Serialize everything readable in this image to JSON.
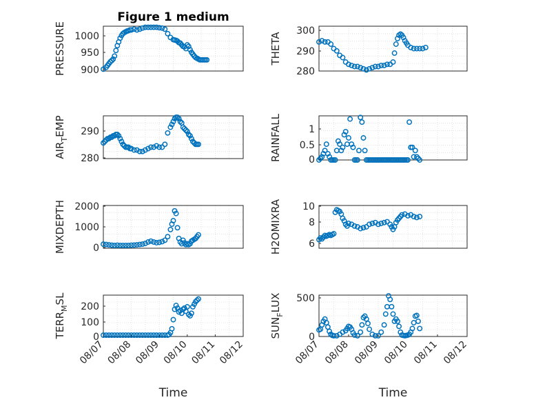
{
  "figure": {
    "title": "Figure 1 medium"
  },
  "chart_data": [
    {
      "type": "scatter",
      "title": "Figure 1 medium",
      "ylabel": "PRESSURE",
      "ylim": [
        900,
        1020
      ],
      "yticks": [
        "900",
        "950",
        "1000"
      ],
      "xlim": [
        0,
        5
      ],
      "grid": true,
      "series": [
        {
          "x": [
            0.0,
            0.1,
            0.15,
            0.2,
            0.25,
            0.3,
            0.35,
            0.4,
            0.45,
            0.5,
            0.55,
            0.6,
            0.65,
            0.7,
            0.75,
            0.8,
            0.85,
            0.9,
            0.95,
            1.0,
            1.1,
            1.2,
            1.3,
            1.4,
            1.5,
            1.6,
            1.7,
            1.8,
            1.9,
            2.0,
            2.1,
            2.2,
            2.3,
            2.4,
            2.5,
            2.55,
            2.6,
            2.65,
            2.7,
            2.75,
            2.8,
            2.85,
            2.9,
            2.95,
            3.0,
            3.05,
            3.1,
            3.15,
            3.2,
            3.25,
            3.3,
            3.35,
            3.4,
            3.45,
            3.5,
            3.55,
            3.6,
            3.65,
            3.7
          ],
          "y": [
            905,
            910,
            915,
            920,
            925,
            928,
            932,
            940,
            955,
            968,
            978,
            988,
            995,
            1000,
            1003,
            1005,
            1007,
            1008,
            1010,
            1010,
            1012,
            1010,
            1012,
            1015,
            1017,
            1017,
            1017,
            1017,
            1017,
            1016,
            1015,
            1012,
            1000,
            990,
            984,
            983,
            982,
            980,
            976,
            975,
            970,
            966,
            965,
            960,
            970,
            966,
            957,
            950,
            945,
            940,
            936,
            934,
            932,
            930,
            930,
            930,
            930,
            930,
            930
          ]
        }
      ]
    },
    {
      "type": "scatter",
      "ylabel": "THETA",
      "ylim": [
        280,
        300
      ],
      "yticks": [
        "280",
        "290",
        "300"
      ],
      "xlim": [
        0,
        5
      ],
      "grid": true,
      "series": [
        {
          "x": [
            0.0,
            0.1,
            0.2,
            0.3,
            0.4,
            0.5,
            0.6,
            0.7,
            0.8,
            0.9,
            1.0,
            1.1,
            1.2,
            1.3,
            1.4,
            1.5,
            1.6,
            1.7,
            1.8,
            1.9,
            2.0,
            2.1,
            2.2,
            2.3,
            2.4,
            2.5,
            2.55,
            2.6,
            2.65,
            2.7,
            2.75,
            2.8,
            2.85,
            2.9,
            2.95,
            3.0,
            3.1,
            3.2,
            3.3,
            3.4,
            3.5,
            3.6
          ],
          "y": [
            293,
            293.5,
            293,
            293,
            292,
            290,
            289,
            287,
            286,
            284,
            283,
            282.5,
            282,
            282,
            281.5,
            281,
            280.5,
            281,
            281.5,
            282,
            282,
            282.5,
            282.5,
            283,
            283,
            284,
            288,
            292,
            294.5,
            296,
            296.5,
            296,
            295,
            293.5,
            292.5,
            291.5,
            290.5,
            290,
            290,
            290,
            290,
            290.5
          ]
        }
      ]
    },
    {
      "type": "scatter",
      "ylabel": "AIR_TEMP",
      "ylim": [
        280,
        295
      ],
      "yticks": [
        "280",
        "290"
      ],
      "xlim": [
        0,
        5
      ],
      "grid": true,
      "series": [
        {
          "x": [
            0.0,
            0.05,
            0.1,
            0.15,
            0.2,
            0.25,
            0.3,
            0.35,
            0.4,
            0.45,
            0.5,
            0.55,
            0.6,
            0.65,
            0.7,
            0.75,
            0.8,
            0.85,
            0.9,
            0.95,
            1.0,
            1.1,
            1.2,
            1.3,
            1.4,
            1.5,
            1.6,
            1.7,
            1.8,
            1.9,
            2.0,
            2.1,
            2.2,
            2.3,
            2.4,
            2.45,
            2.5,
            2.55,
            2.6,
            2.65,
            2.7,
            2.75,
            2.8,
            2.85,
            2.9,
            2.95,
            3.0,
            3.05,
            3.1,
            3.15,
            3.2,
            3.25,
            3.3,
            3.35,
            3.4
          ],
          "y": [
            285.5,
            286,
            286.5,
            287,
            287,
            287.5,
            287.5,
            288,
            288,
            288.5,
            288.5,
            288,
            287,
            286,
            285,
            284.5,
            284,
            284,
            284,
            283.5,
            283.5,
            283,
            283,
            282.5,
            282.5,
            283,
            283.5,
            284,
            284,
            284.5,
            284,
            284,
            285,
            289,
            291,
            292,
            293,
            294,
            294.5,
            294.5,
            294,
            293,
            292.5,
            291,
            290.5,
            290,
            289.5,
            288.5,
            288,
            287,
            286,
            285.5,
            285,
            285,
            285
          ]
        }
      ]
    },
    {
      "type": "scatter",
      "ylabel": "RAINFALL",
      "ylim": [
        0,
        1.4
      ],
      "yticks": [
        "0",
        "0.5",
        "1"
      ],
      "xlim": [
        0,
        5
      ],
      "grid": true,
      "series": [
        {
          "x": [
            0.0,
            0.05,
            0.1,
            0.15,
            0.2,
            0.25,
            0.3,
            0.35,
            0.4,
            0.45,
            0.5,
            0.55,
            0.6,
            0.65,
            0.7,
            0.75,
            0.8,
            0.85,
            0.9,
            0.95,
            1.0,
            1.05,
            1.1,
            1.15,
            1.2,
            1.25,
            1.3,
            1.35,
            1.4,
            1.45,
            1.5,
            1.55,
            1.6,
            1.65,
            1.7,
            1.75,
            1.8,
            1.85,
            1.9,
            1.95,
            2.0,
            2.05,
            2.1,
            2.15,
            2.2,
            2.25,
            2.3,
            2.35,
            2.4,
            2.45,
            2.5,
            2.55,
            2.6,
            2.65,
            2.7,
            2.75,
            2.8,
            2.85,
            2.9,
            2.95,
            3.0,
            3.05,
            3.1,
            3.15,
            3.2,
            3.25,
            3.3,
            3.35,
            3.4
          ],
          "y": [
            0,
            0.05,
            0.1,
            0.2,
            0.3,
            0.5,
            0.2,
            0.1,
            0,
            0,
            0,
            0,
            0.3,
            0.6,
            0.5,
            0.3,
            0.4,
            0.8,
            0.9,
            0.5,
            0.7,
            1.3,
            0.5,
            0.4,
            0,
            0,
            0,
            0.3,
            1.35,
            1.2,
            0.7,
            0.3,
            0,
            0,
            0,
            0,
            0,
            0,
            0,
            0,
            0,
            0,
            0,
            0,
            0,
            0,
            0,
            0,
            0,
            0,
            0,
            0,
            0,
            0,
            0,
            0,
            0,
            0,
            0,
            0,
            0,
            1.2,
            0.4,
            0.4,
            0.1,
            0.3,
            0.1,
            0.05,
            0
          ]
        }
      ]
    },
    {
      "type": "scatter",
      "ylabel": "MIXDEPTH",
      "ylim": [
        -150,
        2250
      ],
      "yticks": [
        "0",
        "1000",
        "2000"
      ],
      "xlim": [
        0,
        5
      ],
      "grid": true,
      "series": [
        {
          "x": [
            0.0,
            0.1,
            0.2,
            0.3,
            0.4,
            0.5,
            0.6,
            0.7,
            0.8,
            0.9,
            1.0,
            1.1,
            1.2,
            1.3,
            1.4,
            1.5,
            1.6,
            1.7,
            1.8,
            1.9,
            2.0,
            2.1,
            2.2,
            2.3,
            2.4,
            2.45,
            2.5,
            2.55,
            2.6,
            2.65,
            2.7,
            2.75,
            2.8,
            2.85,
            2.9,
            2.95,
            3.0,
            3.05,
            3.1,
            3.15,
            3.2,
            3.25,
            3.3,
            3.35,
            3.4
          ],
          "y": [
            80,
            60,
            40,
            20,
            10,
            20,
            10,
            10,
            10,
            10,
            20,
            30,
            40,
            60,
            80,
            120,
            200,
            250,
            200,
            160,
            180,
            220,
            300,
            500,
            900,
            1200,
            1400,
            1950,
            1800,
            1000,
            400,
            200,
            100,
            300,
            150,
            50,
            100,
            50,
            100,
            250,
            300,
            350,
            400,
            500,
            600
          ]
        }
      ]
    },
    {
      "type": "scatter",
      "ylabel": "H2OMIXRA",
      "ylim": [
        5,
        10
      ],
      "yticks": [
        "6",
        "8",
        "10"
      ],
      "xlim": [
        0,
        5
      ],
      "grid": true,
      "series": [
        {
          "x": [
            0.0,
            0.05,
            0.1,
            0.15,
            0.2,
            0.25,
            0.3,
            0.35,
            0.4,
            0.45,
            0.5,
            0.55,
            0.6,
            0.65,
            0.7,
            0.75,
            0.8,
            0.85,
            0.9,
            0.95,
            1.0,
            1.1,
            1.2,
            1.3,
            1.4,
            1.5,
            1.6,
            1.7,
            1.8,
            1.9,
            2.0,
            2.1,
            2.2,
            2.3,
            2.4,
            2.45,
            2.5,
            2.55,
            2.6,
            2.65,
            2.7,
            2.75,
            2.8,
            2.9,
            3.0,
            3.1,
            3.2,
            3.3,
            3.4
          ],
          "y": [
            6,
            6.2,
            6.1,
            6.3,
            6.5,
            6.4,
            6.5,
            6.6,
            6.5,
            6.6,
            6.7,
            9.2,
            9.5,
            9.4,
            9.3,
            9,
            8.5,
            8.2,
            7.8,
            7.6,
            7.9,
            7.8,
            7.6,
            7.5,
            7.3,
            7.4,
            7.5,
            7.8,
            7.9,
            8,
            7.8,
            7.9,
            8,
            8.1,
            7.8,
            7.5,
            7.2,
            7.5,
            8,
            8.3,
            8.5,
            8.7,
            8.9,
            9,
            8.8,
            8.9,
            8.7,
            8.6,
            8.7
          ]
        }
      ]
    },
    {
      "type": "scatter",
      "ylabel": "TERR_MSL",
      "ylim": [
        -10,
        310
      ],
      "yticks": [
        "0",
        "100",
        "200"
      ],
      "xlim": [
        0,
        5
      ],
      "xticks": [
        "08/07",
        "08/08",
        "08/09",
        "08/10",
        "08/11",
        "08/12"
      ],
      "xlabel": "Time",
      "grid": true,
      "series": [
        {
          "x": [
            0.0,
            0.1,
            0.2,
            0.3,
            0.4,
            0.5,
            0.6,
            0.7,
            0.8,
            0.9,
            1.0,
            1.1,
            1.2,
            1.3,
            1.4,
            1.5,
            1.6,
            1.7,
            1.8,
            1.9,
            2.0,
            2.1,
            2.2,
            2.3,
            2.35,
            2.4,
            2.45,
            2.5,
            2.55,
            2.6,
            2.65,
            2.7,
            2.75,
            2.8,
            2.85,
            2.9,
            2.95,
            3.0,
            3.05,
            3.1,
            3.15,
            3.2,
            3.25,
            3.3,
            3.35,
            3.4
          ],
          "y": [
            0,
            0,
            0,
            0,
            0,
            0,
            0,
            0,
            0,
            0,
            0,
            0,
            0,
            0,
            0,
            0,
            0,
            0,
            0,
            0,
            0,
            0,
            0,
            0,
            5,
            20,
            50,
            120,
            200,
            230,
            210,
            180,
            190,
            170,
            200,
            210,
            185,
            220,
            160,
            150,
            170,
            220,
            240,
            260,
            270,
            280
          ]
        }
      ]
    },
    {
      "type": "scatter",
      "ylabel": "SUN_FLUX",
      "ylim": [
        -10,
        560
      ],
      "yticks": [
        "0",
        "500"
      ],
      "xlim": [
        0,
        5
      ],
      "xticks": [
        "08/07",
        "08/08",
        "08/09",
        "08/10",
        "08/11",
        "08/12"
      ],
      "xlabel": "Time",
      "grid": true,
      "series": [
        {
          "x": [
            0.0,
            0.05,
            0.1,
            0.15,
            0.2,
            0.25,
            0.3,
            0.35,
            0.4,
            0.45,
            0.5,
            0.6,
            0.7,
            0.8,
            0.9,
            0.95,
            1.0,
            1.05,
            1.1,
            1.15,
            1.2,
            1.3,
            1.4,
            1.45,
            1.5,
            1.55,
            1.6,
            1.65,
            1.7,
            1.8,
            1.9,
            2.0,
            2.1,
            2.2,
            2.25,
            2.3,
            2.35,
            2.4,
            2.45,
            2.5,
            2.55,
            2.6,
            2.65,
            2.7,
            2.75,
            2.8,
            2.85,
            2.9,
            2.95,
            3.0,
            3.05,
            3.1,
            3.15,
            3.2,
            3.25,
            3.3,
            3.35,
            3.4
          ],
          "y": [
            80,
            90,
            150,
            200,
            230,
            180,
            120,
            60,
            20,
            5,
            0,
            0,
            20,
            50,
            70,
            100,
            130,
            120,
            90,
            40,
            10,
            0,
            50,
            150,
            250,
            270,
            230,
            170,
            90,
            20,
            0,
            0,
            50,
            150,
            300,
            400,
            550,
            500,
            400,
            300,
            200,
            230,
            200,
            130,
            50,
            10,
            5,
            0,
            5,
            10,
            20,
            50,
            100,
            180,
            270,
            280,
            200,
            100
          ]
        }
      ]
    }
  ]
}
